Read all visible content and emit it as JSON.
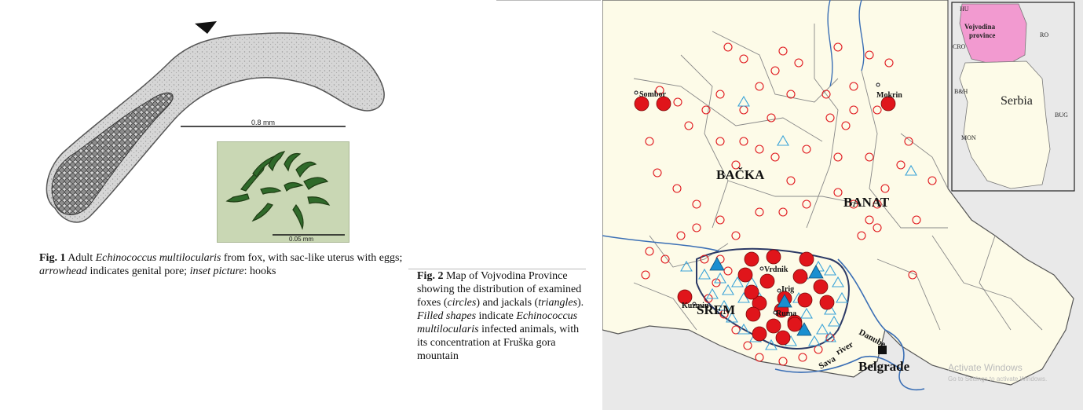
{
  "figure1": {
    "scale_main": "0.8 mm",
    "scale_inset": "0.05 mm",
    "caption_label": "Fig. 1",
    "caption_text_1": "Adult ",
    "caption_species": "Echinococcus multilocularis",
    "caption_text_2": " from fox, with sac-like uterus with eggs; ",
    "caption_arrowhead": "arrowhead",
    "caption_text_3": " indicates genital pore; ",
    "caption_inset": "inset picture",
    "caption_text_4": ": hooks"
  },
  "figure2": {
    "caption_label": "Fig. 2",
    "caption_text_1": "Map of Vojvodina Province showing the distribution of examined foxes (",
    "caption_circles": "circles",
    "caption_text_2": ") and jackals (",
    "caption_triangles": "triangles",
    "caption_text_3": "). ",
    "caption_filled": "Filled shapes",
    "caption_text_4": " indicate ",
    "caption_species": "Echinococcus multilocularis",
    "caption_text_5": " infected animals, with its concentration at Fruška gora mountain"
  },
  "map": {
    "regions": [
      "BAČKA",
      "BANAT",
      "SREM"
    ],
    "towns": [
      "Sombor",
      "Mokrin",
      "Kuzmin",
      "Vrdnik",
      "Irig",
      "Ruma"
    ],
    "rivers": [
      "Danube",
      "Sava",
      "river"
    ],
    "capital": "Belgrade",
    "inset": {
      "title_line1": "Vojvodina",
      "title_line2": "province",
      "country": "Serbia",
      "neighbors": [
        "HU",
        "RO",
        "CRO",
        "B&H",
        "BUG",
        "MON"
      ]
    },
    "watermark_line1": "Activate Windows",
    "watermark_line2": "Go to Settings to activate Windows.",
    "colors": {
      "fox_infected": "#e0151b",
      "jackal_infected": "#1a8fd0",
      "open_marker_fox": "#e0151b",
      "open_marker_jackal": "#3aa3d8",
      "land": "#fdfbe8",
      "vojvodina_inset": "#f29ad0",
      "river": "#3b6fb5"
    }
  }
}
